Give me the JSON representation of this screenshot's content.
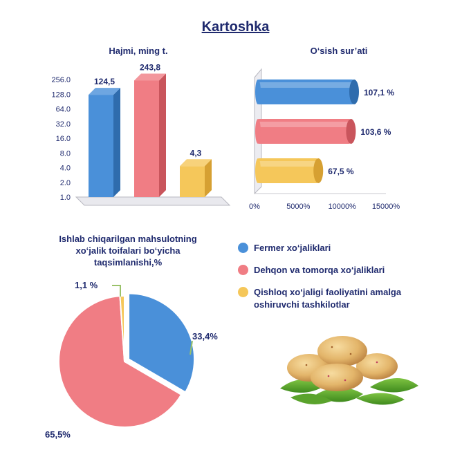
{
  "title": "Kartoshka",
  "colors": {
    "blue": "#4a90d9",
    "blue_dark": "#2f6cad",
    "red": "#f07d84",
    "red_dark": "#c9555c",
    "yellow": "#f5c75a",
    "yellow_dark": "#d6a032",
    "text": "#1f2a6e"
  },
  "chart_data": [
    {
      "type": "bar",
      "title": "Hajmi, ming t.",
      "scale": "log2",
      "y_ticks": [
        "256.0",
        "128.0",
        "64.0",
        "32.0",
        "16.0",
        "8.0",
        "4.0",
        "2.0",
        "1.0"
      ],
      "ylim": [
        1,
        256
      ],
      "categories": [
        "Fermer xo‘jaliklari",
        "Dehqon va tomorqa xo‘jaliklari",
        "Qishloq xo‘jaligi faoliyatini amalga oshiruvchi tashkilotlar"
      ],
      "values": [
        124.5,
        243.8,
        4.3
      ],
      "data_labels": [
        "124,5",
        "243,8",
        "4,3"
      ]
    },
    {
      "type": "bar",
      "orientation": "horizontal",
      "title": "O‘sish sur’ati",
      "x_ticks": [
        "0%",
        "5000%",
        "10000%",
        "15000%"
      ],
      "xlim": [
        0,
        15000
      ],
      "categories": [
        "Fermer xo‘jaliklari",
        "Dehqon va tomorqa xo‘jaliklari",
        "Qishloq xo‘jaligi faoliyatini amalga oshiruvchi tashkilotlar"
      ],
      "values": [
        107.1,
        103.6,
        67.5
      ],
      "data_labels": [
        "107,1 %",
        "103,6 %",
        "67,5 %"
      ]
    },
    {
      "type": "pie",
      "title": "Ishlab chiqarilgan mahsulotning xo‘jalik toifalari bo‘yicha taqsimlanishi,%",
      "categories": [
        "Fermer xo‘jaliklari",
        "Dehqon va tomorqa xo‘jaliklari",
        "Qishloq xo‘jaligi faoliyatini amalga oshiruvchi tashkilotlar"
      ],
      "values": [
        33.4,
        65.5,
        1.1
      ],
      "data_labels": [
        "33,4%",
        "65,5%",
        "1,1 %"
      ]
    }
  ],
  "titles": {
    "bar": "Hajmi, ming t.",
    "hbar": "O‘sish sur’ati",
    "pie_line1": "Ishlab chiqarilgan mahsulotning",
    "pie_line2": "xo‘jalik toifalari bo‘yicha",
    "pie_line3": "taqsimlanishi,%"
  },
  "legend": [
    {
      "label": "Fermer xo‘jaliklari",
      "color": "#4a90d9"
    },
    {
      "label": "Dehqon va tomorqa  xo‘jaliklari",
      "color": "#f07d84"
    },
    {
      "label": "Qishloq xo‘jaligi faoliyatini amalga oshiruvchi tashkilotlar",
      "color": "#f5c75a"
    }
  ]
}
